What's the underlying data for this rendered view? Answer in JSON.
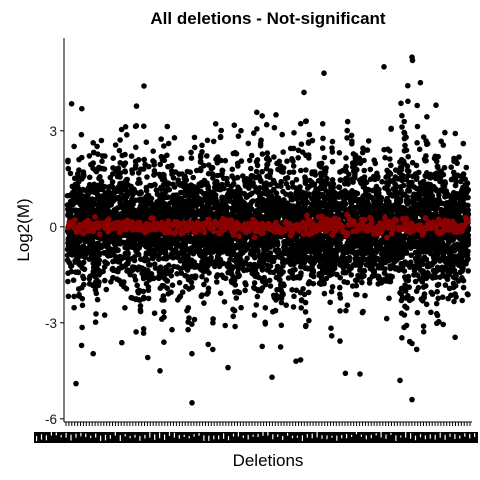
{
  "chart_data": {
    "type": "scatter",
    "title": "All deletions - Not-significant",
    "xlabel": "Deletions",
    "ylabel": "Log2(M)",
    "ylim": [
      -6.1,
      5.9
    ],
    "yticks": [
      3,
      0,
      -3,
      -6
    ],
    "ytick_labels": [
      "3",
      "0",
      "-3",
      "-6"
    ],
    "xtick_labels": "dense overlapping deletion names (illegible)",
    "grid": false,
    "legend": "none",
    "series": [
      {
        "name": "",
        "color": "#000000",
        "values": "per-deletion Log2(M) scatter: dense band about -2.5..2.5 with outliers from -5.5 to 5.3"
      },
      {
        "name": "",
        "color": "#8b0000",
        "values": "per-deletion median values, all near 0"
      }
    ],
    "outliers": [
      {
        "x": 0.52,
        "y": 3.5
      },
      {
        "x": 0.64,
        "y": 4.8
      },
      {
        "x": 0.86,
        "y": 5.3
      },
      {
        "x": 0.79,
        "y": 5.0
      },
      {
        "x": 0.92,
        "y": 3.8
      },
      {
        "x": 0.59,
        "y": 4.2
      },
      {
        "x": 0.31,
        "y": -5.5
      },
      {
        "x": 0.86,
        "y": -5.4
      },
      {
        "x": 0.23,
        "y": -4.5
      },
      {
        "x": 0.02,
        "y": -4.9
      },
      {
        "x": 0.51,
        "y": -4.7
      },
      {
        "x": 0.57,
        "y": -4.2
      },
      {
        "x": 0.73,
        "y": -4.6
      },
      {
        "x": 0.4,
        "y": -4.4
      },
      {
        "x": 0.83,
        "y": -4.8
      },
      {
        "x": 0.19,
        "y": 4.4
      }
    ]
  },
  "colors": {
    "points": "#000000",
    "medians": "#8b0000",
    "background": "#ffffff"
  }
}
